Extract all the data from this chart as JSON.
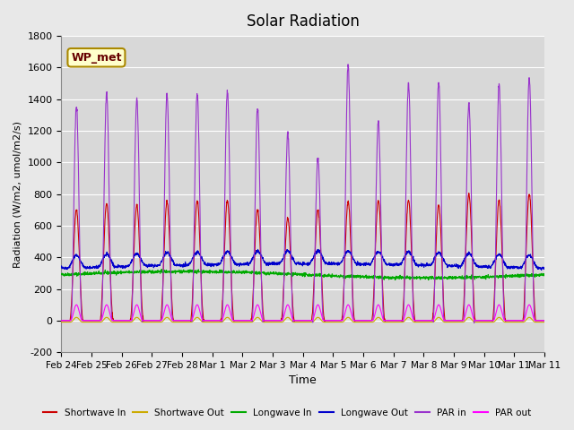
{
  "title": "Solar Radiation",
  "ylabel": "Radiation (W/m2, umol/m2/s)",
  "xlabel": "Time",
  "ylim": [
    -200,
    1800
  ],
  "yticks": [
    -200,
    0,
    200,
    400,
    600,
    800,
    1000,
    1200,
    1400,
    1600,
    1800
  ],
  "x_labels": [
    "Feb 24",
    "Feb 25",
    "Feb 26",
    "Feb 27",
    "Feb 28",
    "Mar 1",
    "Mar 2",
    "Mar 3",
    "Mar 4",
    "Mar 5",
    "Mar 6",
    "Mar 7",
    "Mar 8",
    "Mar 9",
    "Mar 10",
    "Mar 11"
  ],
  "n_days": 16,
  "bg_color": "#e8e8e8",
  "plot_bg_color": "#d8d8d8",
  "legend_label": "WP_met",
  "shortwave_in_peaks": [
    700,
    740,
    730,
    750,
    760,
    760,
    700,
    650,
    700,
    750,
    760,
    760,
    730,
    800,
    760,
    800
  ],
  "par_in_peaks": [
    1360,
    1440,
    1400,
    1430,
    1440,
    1450,
    1340,
    1180,
    1030,
    1610,
    1260,
    1500,
    1510,
    1380,
    1490,
    1540
  ],
  "par_out_peak": 100,
  "shortwave_out_peak": 30,
  "longwave_in_base": 290,
  "longwave_out_base": 330,
  "colors": {
    "shortwave_in": "#cc0000",
    "shortwave_out": "#ccaa00",
    "longwave_in": "#00aa00",
    "longwave_out": "#0000cc",
    "par_in": "#9933cc",
    "par_out": "#ff00ff"
  },
  "legend_items": [
    {
      "label": "Shortwave In",
      "color": "#cc0000"
    },
    {
      "label": "Shortwave Out",
      "color": "#ccaa00"
    },
    {
      "label": "Longwave In",
      "color": "#00aa00"
    },
    {
      "label": "Longwave Out",
      "color": "#0000cc"
    },
    {
      "label": "PAR in",
      "color": "#9933cc"
    },
    {
      "label": "PAR out",
      "color": "#ff00ff"
    }
  ]
}
